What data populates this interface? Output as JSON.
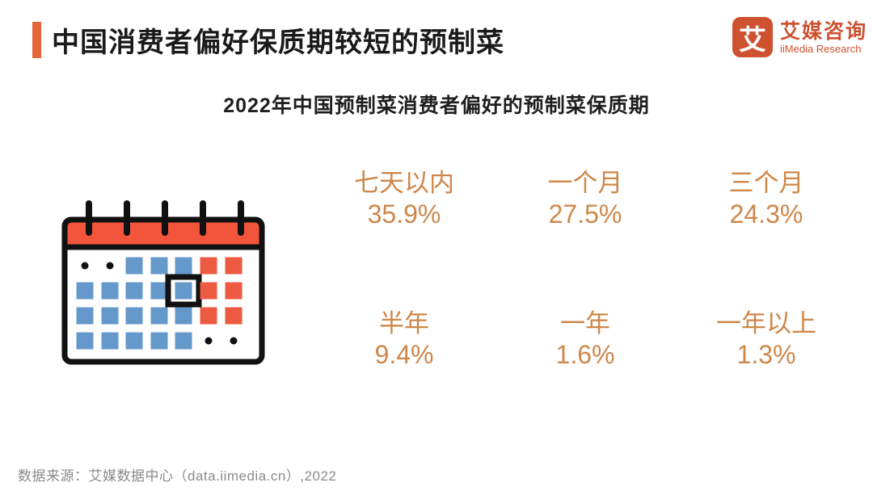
{
  "header": {
    "title": "中国消费者偏好保质期较短的预制菜",
    "logo": {
      "glyph": "艾",
      "name_cn": "艾媒咨询",
      "name_en": "iiMedia Research"
    }
  },
  "chart_data": {
    "type": "table",
    "title": "2022年中国预制菜消费者偏好的预制菜保质期",
    "categories": [
      "七天以内",
      "一个月",
      "三个月",
      "半年",
      "一年",
      "一年以上"
    ],
    "values": [
      35.9,
      27.5,
      24.3,
      9.4,
      1.6,
      1.3
    ],
    "unit": "%",
    "layout": "2-row by 3-column grid of labeled percentages beside a calendar pictogram, no axes, no gridlines"
  },
  "stats": [
    {
      "label": "七天以内",
      "value": "35.9%"
    },
    {
      "label": "一个月",
      "value": "27.5%"
    },
    {
      "label": "三个月",
      "value": "24.3%"
    },
    {
      "label": "半年",
      "value": "9.4%"
    },
    {
      "label": "一年",
      "value": "1.6%"
    },
    {
      "label": "一年以上",
      "value": "1.3%"
    }
  ],
  "calendar_icon": {
    "name": "calendar-icon",
    "grid": [
      [
        ".",
        ".",
        "B",
        "B",
        "B",
        "R",
        "R"
      ],
      [
        "B",
        "B",
        "B",
        "B",
        "b",
        "R",
        "R"
      ],
      [
        "B",
        "B",
        "B",
        "B",
        "B",
        "R",
        "R"
      ],
      [
        "B",
        "B",
        "B",
        "B",
        "B",
        ".",
        "."
      ]
    ],
    "legend": "B=blue workday square, R=red weekend square, b=blue square highlighted with black selection box, .=black dot"
  },
  "footer": {
    "source": "数据来源：艾媒数据中心（data.iimedia.cn）,2022"
  },
  "colors": {
    "accent": "#E4653A",
    "brand": "#CE5130",
    "stat_text": "#CE8749",
    "title_text": "#1A1A1A",
    "source_text": "#8A8A8A",
    "cal_header": "#F2553B",
    "cal_workday": "#6598CB",
    "cal_weekend": "#EE5942",
    "cal_outline": "#111111"
  }
}
